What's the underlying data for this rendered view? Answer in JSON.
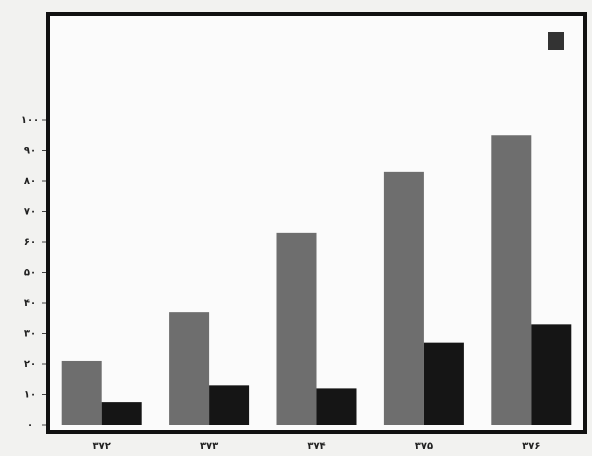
{
  "chart_data": {
    "type": "bar",
    "categories": [
      "۳۷۲",
      "۳۷۳",
      "۳۷۴",
      "۳۷۵",
      "۳۷۶"
    ],
    "series": [
      {
        "color": "#6e6e6e",
        "values": [
          21,
          37,
          63,
          83,
          95
        ]
      },
      {
        "color": "#151515",
        "values": [
          7.5,
          13,
          12,
          27,
          33
        ]
      }
    ],
    "ylim": [
      0,
      100
    ],
    "yticks": [
      {
        "value": 0,
        "label": "۰"
      },
      {
        "value": 10,
        "label": "۱۰"
      },
      {
        "value": 20,
        "label": "۲۰"
      },
      {
        "value": 30,
        "label": "۳۰"
      },
      {
        "value": 40,
        "label": "۴۰"
      },
      {
        "value": 50,
        "label": "۵۰"
      },
      {
        "value": 60,
        "label": "۶۰"
      },
      {
        "value": 70,
        "label": "۷۰"
      },
      {
        "value": 80,
        "label": "۸۰"
      },
      {
        "value": 90,
        "label": "۹۰"
      },
      {
        "value": 100,
        "label": "۱۰۰"
      }
    ],
    "grid": false
  }
}
